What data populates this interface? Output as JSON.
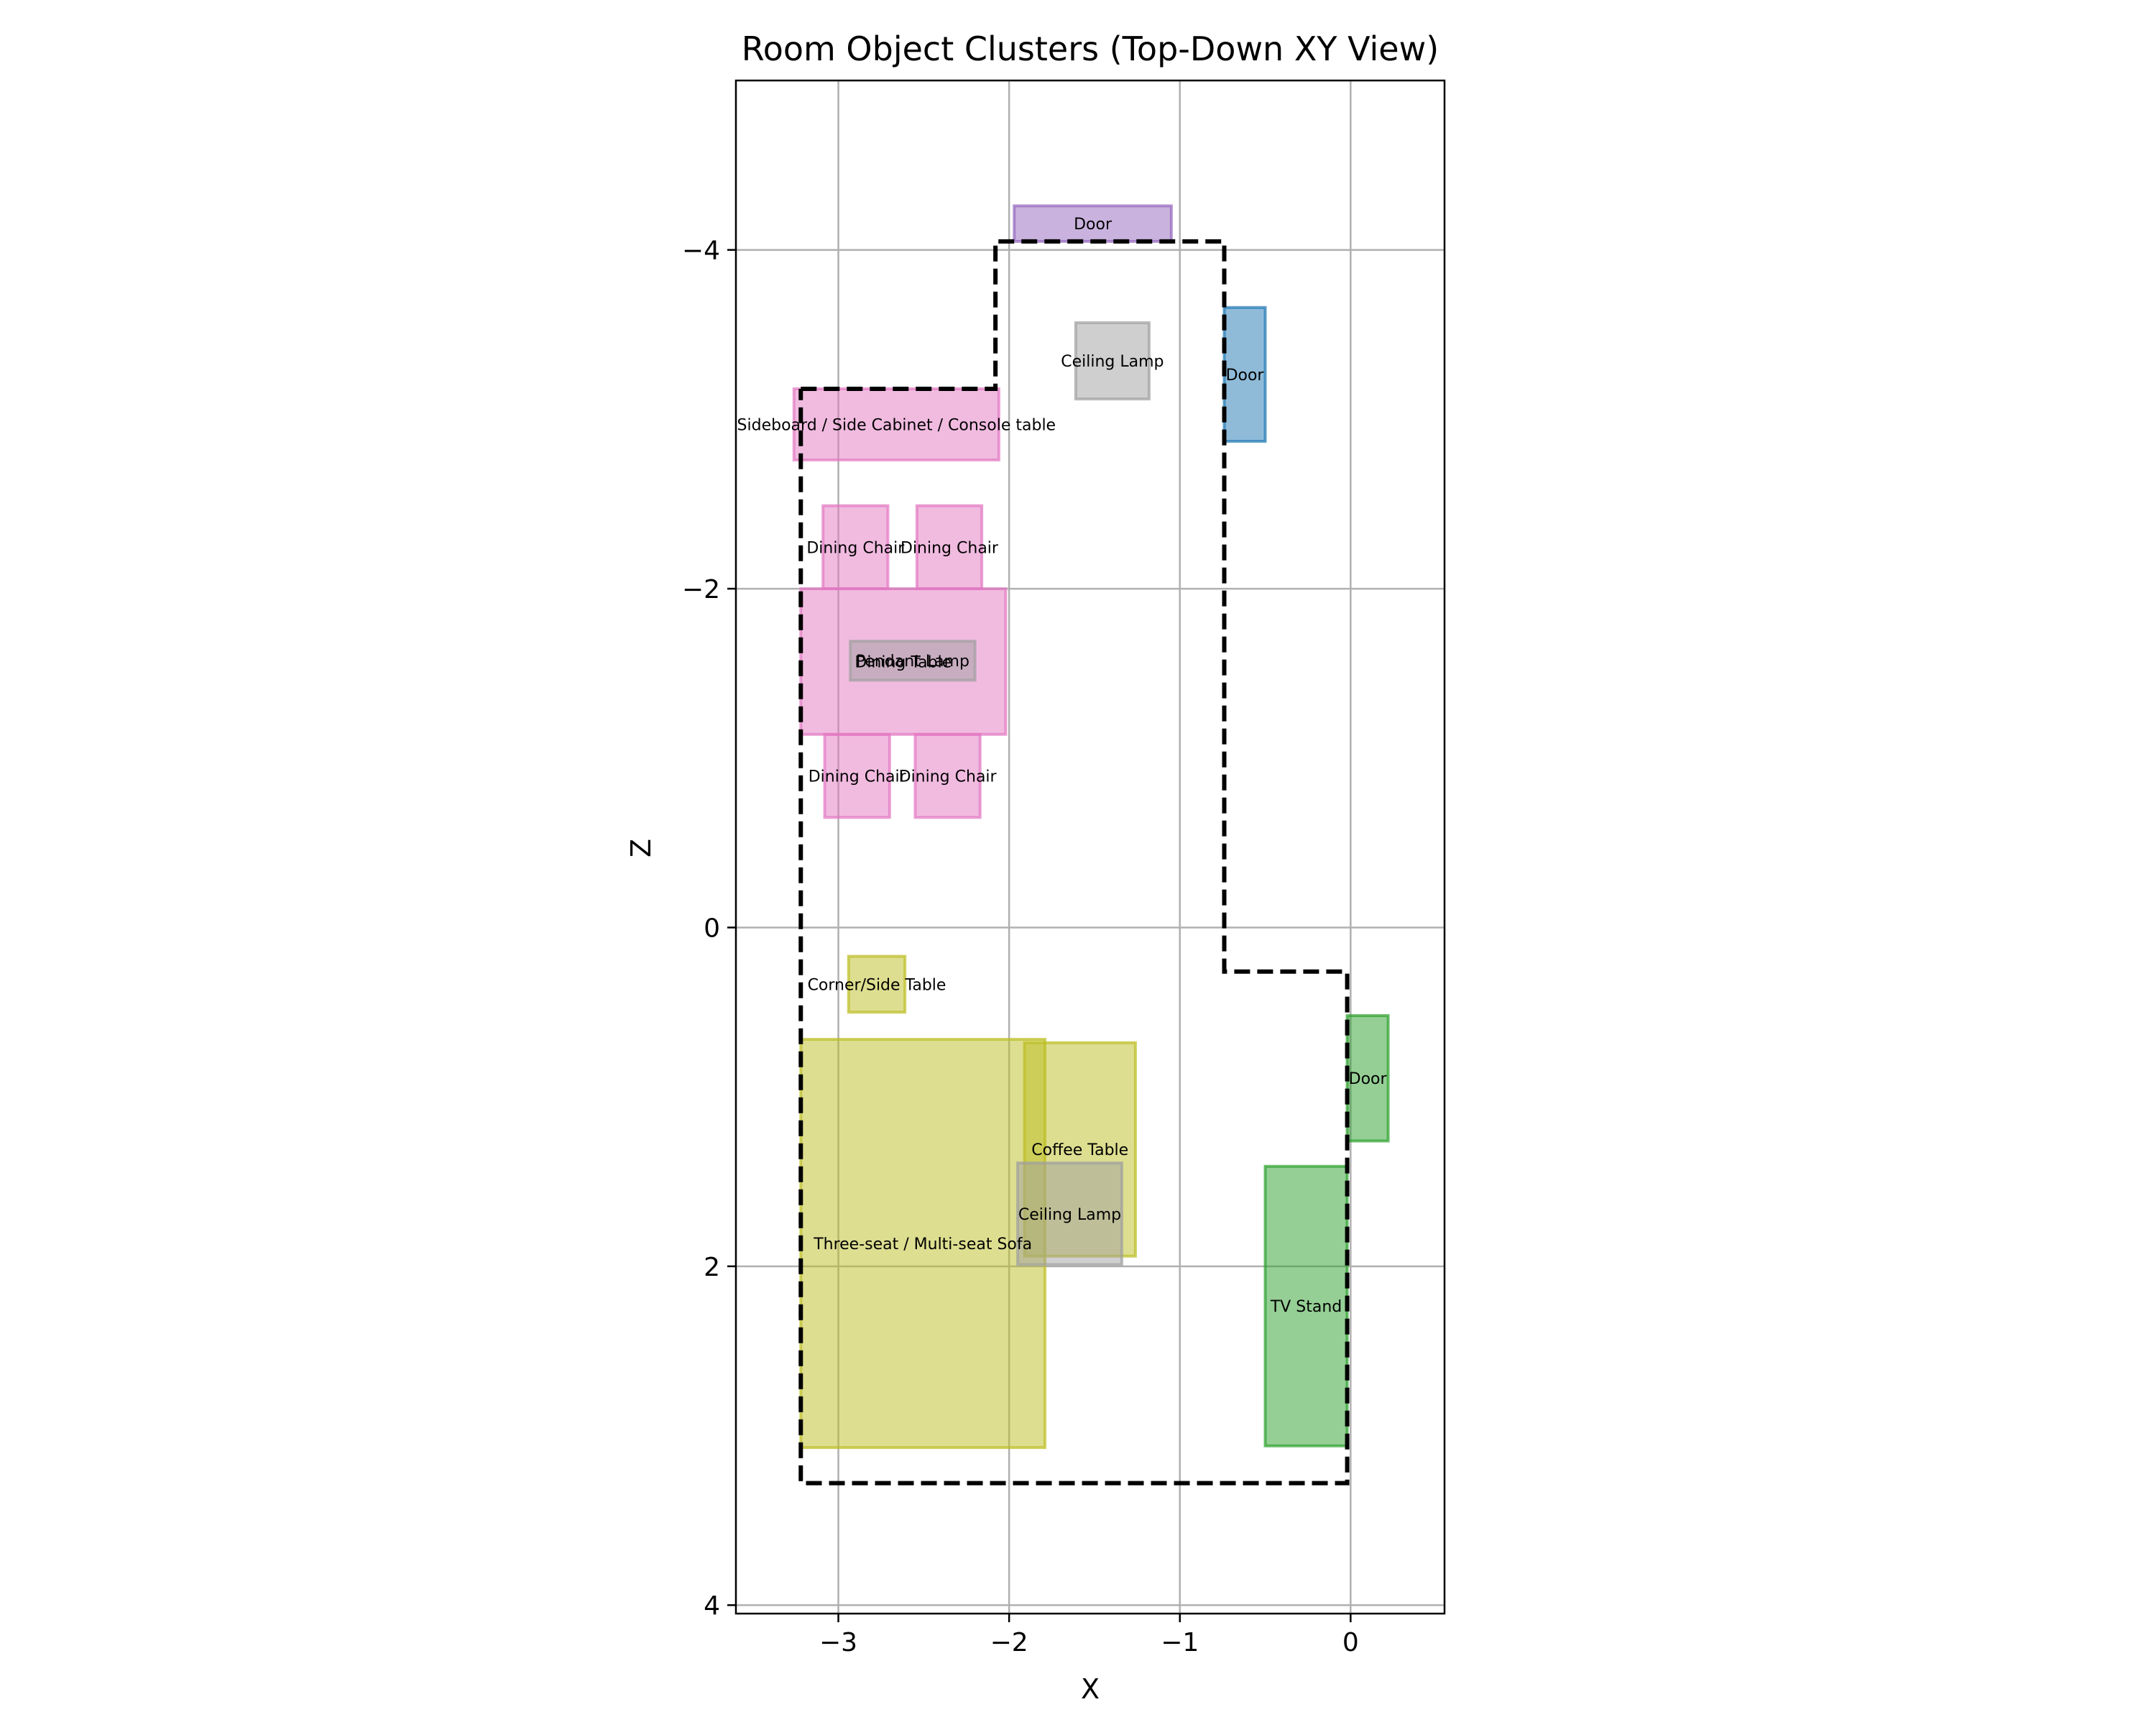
{
  "chart_data": {
    "type": "rectangles",
    "title": "Room Object Clusters (Top-Down XY View)",
    "xlabel": "X",
    "ylabel": "Z",
    "xlim": [
      -3.6,
      0.55
    ],
    "ylim": [
      4.05,
      -5.0
    ],
    "y_inverted": true,
    "xticks": [
      -3,
      -2,
      -1,
      0
    ],
    "xtick_labels": [
      "−3",
      "−2",
      "−1",
      "0"
    ],
    "yticks": [
      -4,
      -2,
      0,
      2,
      4
    ],
    "ytick_labels": [
      "−4",
      "−2",
      "0",
      "2",
      "4"
    ],
    "grid": true,
    "room_outline": [
      [
        -3.22,
        -3.18
      ],
      [
        -2.08,
        -3.18
      ],
      [
        -2.08,
        -4.05
      ],
      [
        -0.74,
        -4.05
      ],
      [
        -0.74,
        0.26
      ],
      [
        -0.02,
        0.26
      ],
      [
        -0.02,
        3.28
      ],
      [
        -3.22,
        3.28
      ]
    ],
    "objects": [
      {
        "label": "Door",
        "x0": -1.97,
        "x1": -1.05,
        "z0": -4.26,
        "z1": -4.05,
        "color": "#9467bd"
      },
      {
        "label": "Door",
        "x0": -0.74,
        "x1": -0.5,
        "z0": -3.66,
        "z1": -2.87,
        "color": "#1f77b4"
      },
      {
        "label": "Door",
        "x0": -0.02,
        "x1": 0.22,
        "z0": 0.52,
        "z1": 1.26,
        "color": "#2ca02c"
      },
      {
        "label": "Ceiling Lamp",
        "x0": -1.61,
        "x1": -1.18,
        "z0": -3.57,
        "z1": -3.12,
        "color": "#a0a0a0"
      },
      {
        "label": "Sideboard / Side Cabinet / Console table",
        "x0": -3.26,
        "x1": -2.06,
        "z0": -3.18,
        "z1": -2.76,
        "color": "#e377c2"
      },
      {
        "label": "Dining Chair",
        "x0": -3.09,
        "x1": -2.71,
        "z0": -2.49,
        "z1": -2.0,
        "color": "#e377c2"
      },
      {
        "label": "Dining Chair",
        "x0": -2.54,
        "x1": -2.16,
        "z0": -2.49,
        "z1": -2.0,
        "color": "#e377c2"
      },
      {
        "label": "Dining Table",
        "x0": -3.22,
        "x1": -2.02,
        "z0": -2.0,
        "z1": -1.14,
        "color": "#e377c2"
      },
      {
        "label": "Pendant Lamp",
        "x0": -2.93,
        "x1": -2.2,
        "z0": -1.69,
        "z1": -1.46,
        "color": "#a0a0a0"
      },
      {
        "label": "Dining Chair",
        "x0": -3.08,
        "x1": -2.7,
        "z0": -1.14,
        "z1": -0.65,
        "color": "#e377c2"
      },
      {
        "label": "Dining Chair",
        "x0": -2.55,
        "x1": -2.17,
        "z0": -1.14,
        "z1": -0.65,
        "color": "#e377c2"
      },
      {
        "label": "Corner/Side Table",
        "x0": -2.94,
        "x1": -2.61,
        "z0": 0.17,
        "z1": 0.5,
        "color": "#bcbd22"
      },
      {
        "label": "Three-seat / Multi-seat Sofa",
        "x0": -3.22,
        "x1": -1.79,
        "z0": 0.66,
        "z1": 3.07,
        "color": "#bcbd22"
      },
      {
        "label": "Coffee Table",
        "x0": -1.91,
        "x1": -1.26,
        "z0": 0.68,
        "z1": 1.94,
        "color": "#bcbd22"
      },
      {
        "label": "Ceiling Lamp",
        "x0": -1.95,
        "x1": -1.34,
        "z0": 1.39,
        "z1": 1.99,
        "color": "#a0a0a0"
      },
      {
        "label": "TV Stand",
        "x0": -0.5,
        "x1": -0.02,
        "z0": 1.41,
        "z1": 3.06,
        "color": "#2ca02c"
      }
    ]
  }
}
